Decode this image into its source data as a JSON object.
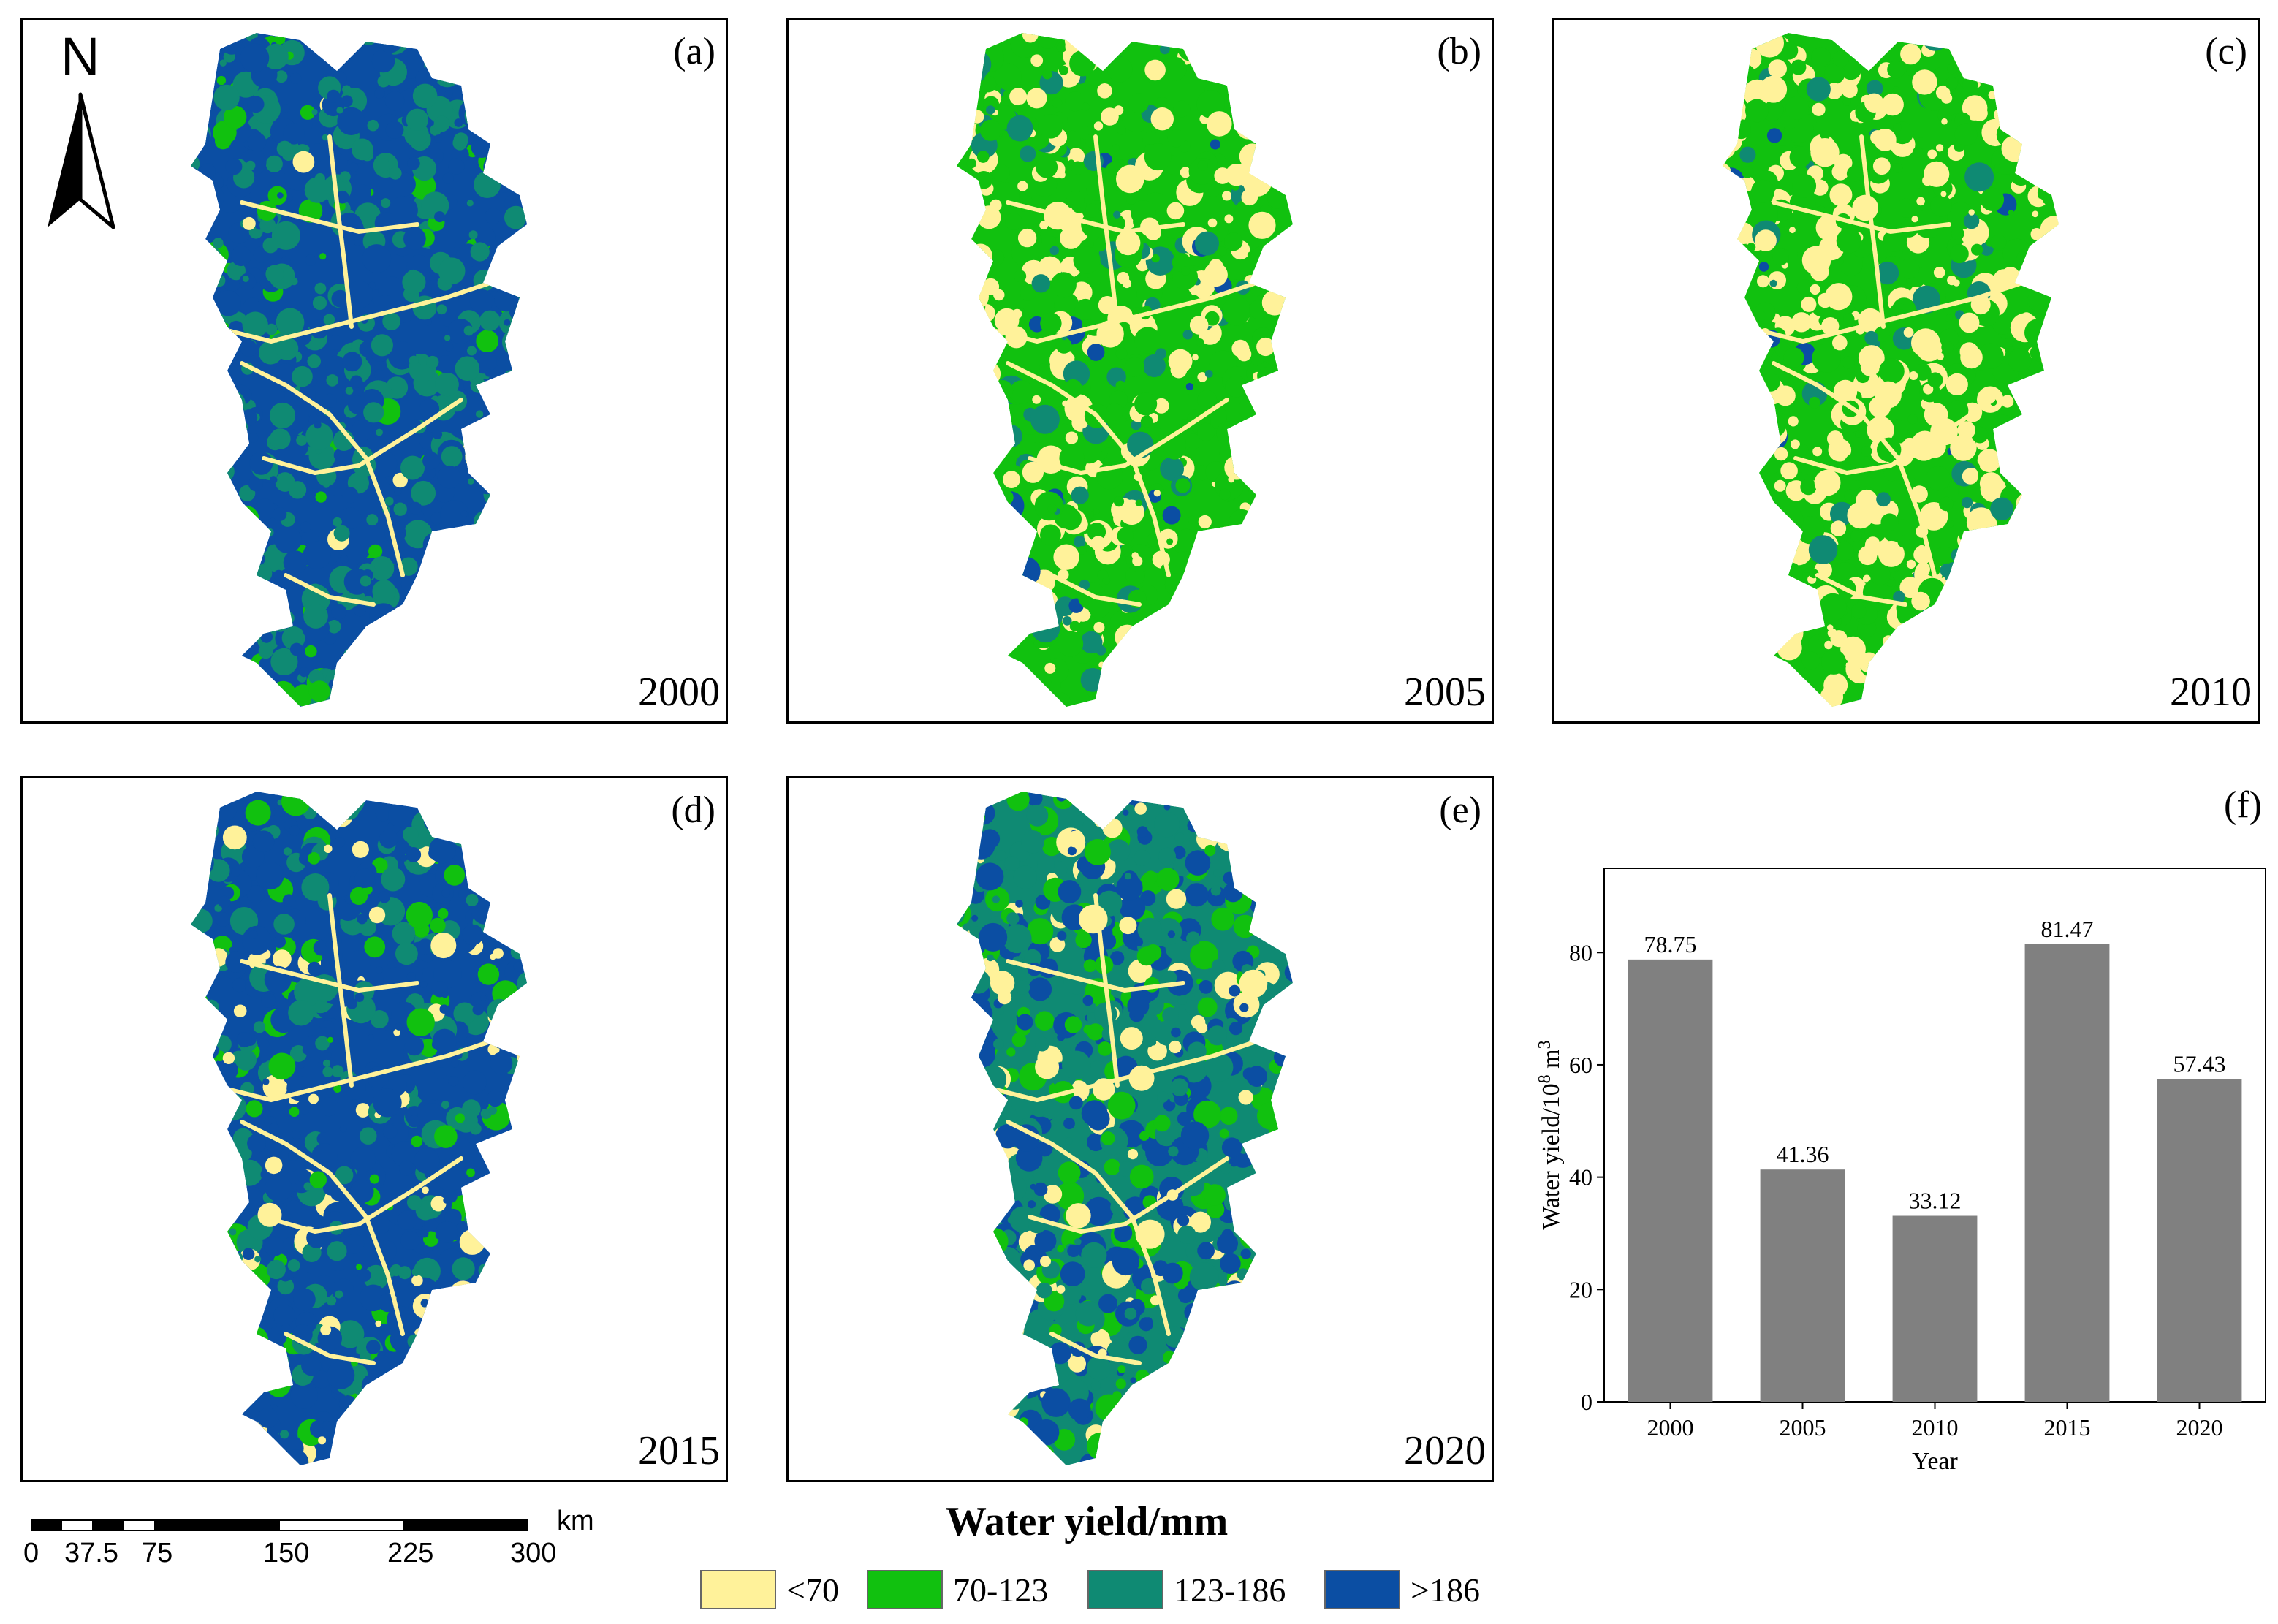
{
  "panels": [
    {
      "label": "(a)",
      "year": "2000",
      "mix": [
        0.02,
        0.06,
        0.42,
        0.5
      ]
    },
    {
      "label": "(b)",
      "year": "2005",
      "mix": [
        0.3,
        0.55,
        0.12,
        0.03
      ]
    },
    {
      "label": "(c)",
      "year": "2010",
      "mix": [
        0.4,
        0.5,
        0.08,
        0.02
      ]
    },
    {
      "label": "(d)",
      "year": "2015",
      "mix": [
        0.1,
        0.1,
        0.25,
        0.55
      ]
    },
    {
      "label": "(e)",
      "year": "2020",
      "mix": [
        0.15,
        0.25,
        0.3,
        0.3
      ]
    }
  ],
  "north_arrow": {
    "letter": "N",
    "icon": "north-arrow-icon"
  },
  "scale_bar": {
    "unit": "km",
    "ticks": [
      "0",
      "37.5",
      "75",
      "150",
      "225",
      "300"
    ]
  },
  "legend": {
    "title": "Water yield/mm",
    "items": [
      {
        "label": "<70",
        "color": "#fff29a"
      },
      {
        "label": "70-123",
        "color": "#11c10f"
      },
      {
        "label": "123-186",
        "color": "#0f8a73"
      },
      {
        "label": ">186",
        "color": "#0b4ea3"
      }
    ]
  },
  "chart_data": {
    "type": "bar",
    "panel_label": "(f)",
    "categories": [
      "2000",
      "2005",
      "2010",
      "2015",
      "2020"
    ],
    "values": [
      78.75,
      41.36,
      33.12,
      81.47,
      57.43
    ],
    "data_labels": [
      "78.75",
      "41.36",
      "33.12",
      "81.47",
      "57.43"
    ],
    "xlabel": "Year",
    "ylabel_text": "Water yield/10",
    "ylabel_sup1": "8",
    "ylabel_mid": " m",
    "ylabel_sup2": "3",
    "ylim": [
      0,
      95
    ],
    "yticks": [
      "0",
      "20",
      "40",
      "60",
      "80"
    ],
    "bar_color": "#808080",
    "grid": false,
    "legend": "none"
  }
}
